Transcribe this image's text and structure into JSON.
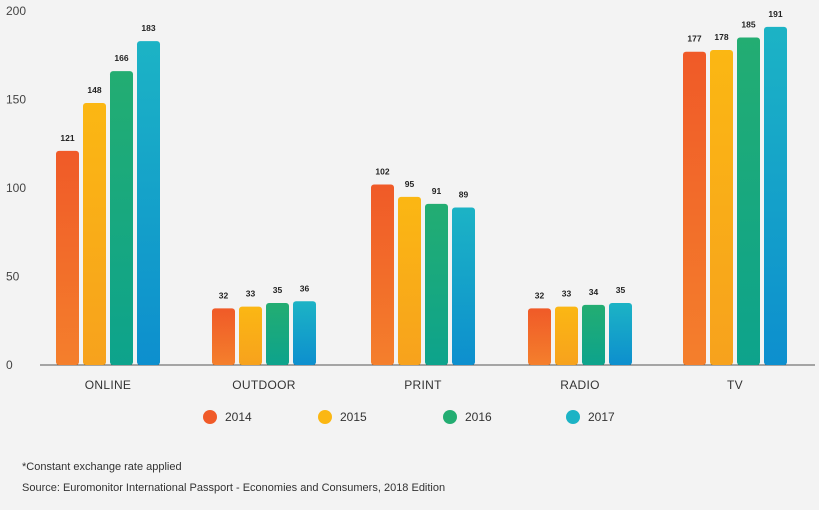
{
  "chart_data": {
    "type": "bar",
    "title": "",
    "xlabel": "",
    "ylabel": "",
    "ylim": [
      0,
      200
    ],
    "yticks": [
      0,
      50,
      100,
      150,
      200
    ],
    "grid": false,
    "legend_position": "bottom",
    "categories": [
      "ONLINE",
      "OUTDOOR",
      "PRINT",
      "RADIO",
      "TV"
    ],
    "series": [
      {
        "name": "2014",
        "values": [
          121,
          32,
          102,
          32,
          177
        ]
      },
      {
        "name": "2015",
        "values": [
          148,
          33,
          95,
          33,
          178
        ]
      },
      {
        "name": "2016",
        "values": [
          166,
          35,
          91,
          34,
          185
        ]
      },
      {
        "name": "2017",
        "values": [
          183,
          36,
          89,
          35,
          191
        ]
      }
    ]
  },
  "colors": {
    "2014": {
      "top": "#f05a28",
      "bottom": "#f47f2c"
    },
    "2015": {
      "top": "#fbb713",
      "bottom": "#f7a21d"
    },
    "2016": {
      "top": "#23ad72",
      "bottom": "#0da38c"
    },
    "2017": {
      "top": "#1cb3c5",
      "bottom": "#0d8fce"
    },
    "axis": "#555555"
  },
  "footnotes": {
    "note": "*Constant exchange rate applied",
    "source": "Source: Euromonitor International Passport - Economies and Consumers, 2018 Edition"
  }
}
